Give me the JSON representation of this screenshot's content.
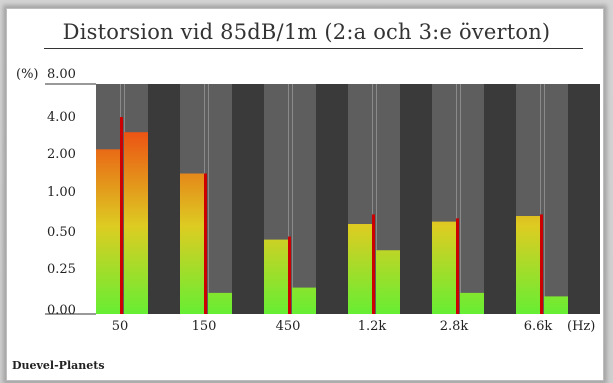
{
  "chart_data": {
    "type": "bar",
    "title": "Distorsion vid 85dB/1m (2:a och 3:e överton)",
    "ylabel": "(%)",
    "xunit": "(Hz)",
    "y_scale": "non-linear",
    "yticks": [
      "8.00",
      "4.00",
      "2.00",
      "1.00",
      "0.50",
      "0.25",
      "0.00"
    ],
    "categories": [
      "50",
      "150",
      "450",
      "1.2k",
      "2.8k",
      "6.6k"
    ],
    "series": [
      {
        "values": [
          2.3,
          1.5,
          0.45,
          0.6,
          0.63,
          0.7
        ]
      },
      {
        "values": [
          3.2,
          0.12,
          0.15,
          0.38,
          0.12,
          0.1
        ]
      }
    ],
    "peak_markers": [
      4.0,
      1.5,
      0.47,
      0.72,
      0.67,
      0.72
    ],
    "grid": false,
    "legend": "none"
  },
  "footer": {
    "label": "Duevel-Planets"
  },
  "colors": {
    "band_dark": "#3a3a3a",
    "band_light": "#5e5e5e",
    "bar_bottom": "#66ee33",
    "bar_mid": "#ddcc22",
    "bar_top": "#ee4411",
    "marker": "#cc0000"
  }
}
